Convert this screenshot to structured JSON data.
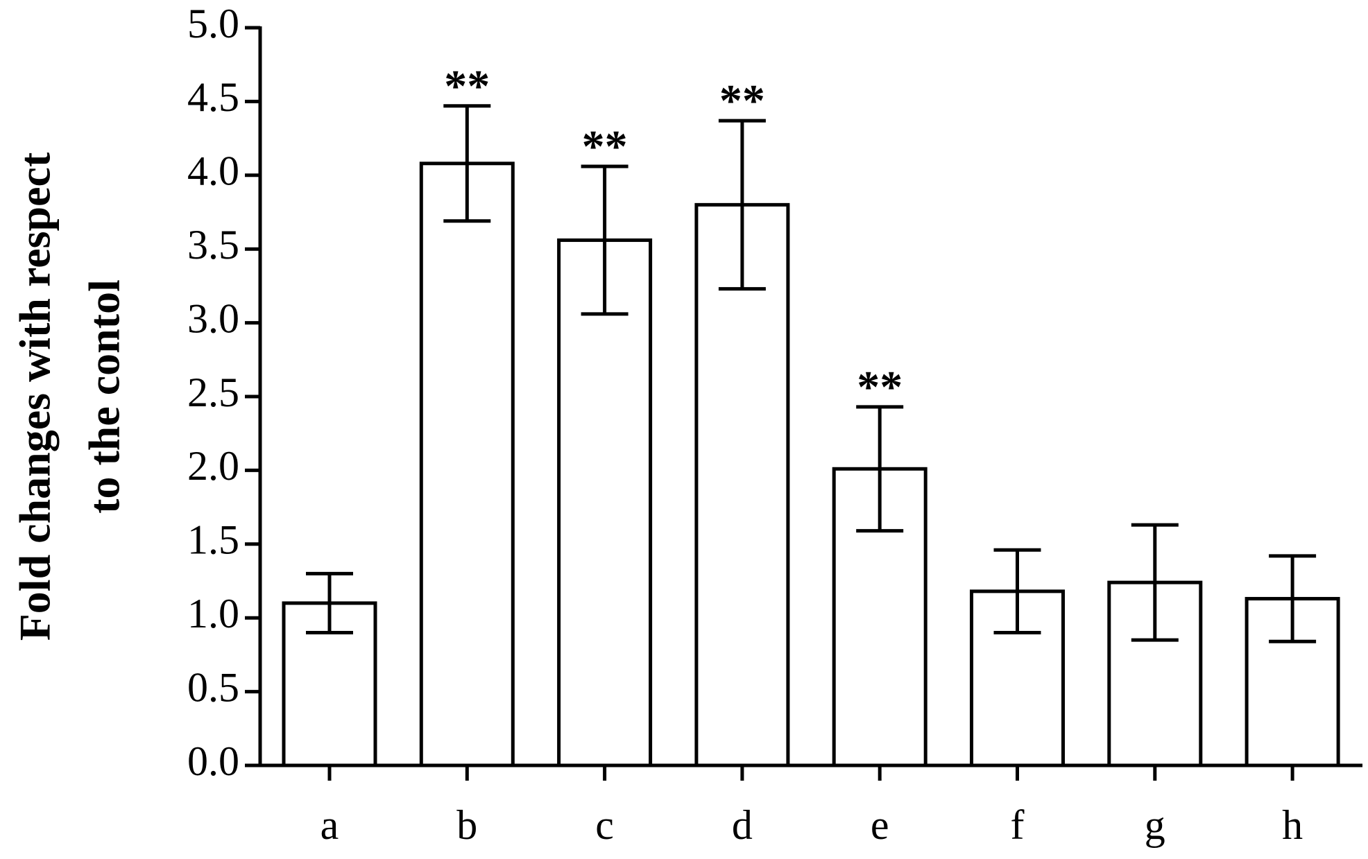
{
  "chart_data": {
    "type": "bar",
    "y_label": [
      "Fold changes with respect",
      "to the contol"
    ],
    "categories": [
      "a",
      "b",
      "c",
      "d",
      "e",
      "f",
      "g",
      "h"
    ],
    "values": [
      1.1,
      4.08,
      3.56,
      3.8,
      2.01,
      1.18,
      1.24,
      1.13
    ],
    "errors": [
      0.2,
      0.39,
      0.5,
      0.57,
      0.42,
      0.28,
      0.39,
      0.29
    ],
    "significance": [
      null,
      "**",
      "**",
      "**",
      "**",
      null,
      null,
      null
    ],
    "color": "#ffffff",
    "edge_color": "#000000",
    "ylim": [
      0,
      5
    ],
    "yticks": [
      {
        "value": 0,
        "label": "0.0"
      },
      0.5,
      {
        "value": 1,
        "label": "1.0"
      },
      1.5,
      {
        "value": 2,
        "label": "2.0"
      },
      2.5,
      {
        "value": 3,
        "label": "3.0"
      },
      3.5,
      {
        "value": 4,
        "label": "4.0"
      },
      4.5,
      {
        "value": 5,
        "label": "5.0"
      }
    ],
    "grid": false
  }
}
